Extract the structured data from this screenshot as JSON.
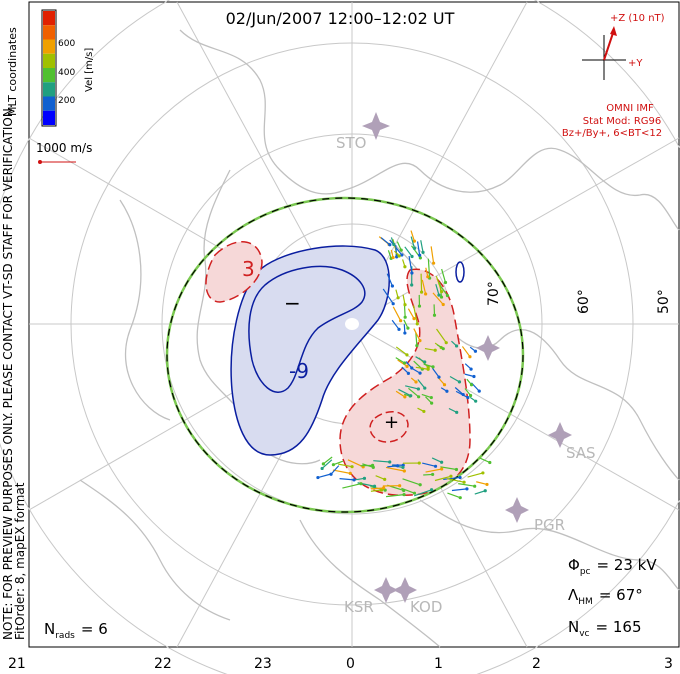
{
  "title": "02/Jun/2007 12:00–12:02 UT",
  "coord_label": "MLT coordinates",
  "velocity_scale": {
    "axis_label": "Vel [m/s]",
    "ticks": [
      "600",
      "400",
      "200"
    ],
    "colors": [
      "#0000ff",
      "#1060d0",
      "#20a080",
      "#50c030",
      "#a0c000",
      "#f0a000",
      "#f06000",
      "#e02000"
    ]
  },
  "ref_vector_label": "1000 m/s",
  "imf": {
    "z_label": "+Z (10 nT)",
    "y_label": "+Y",
    "source": "OMNI IMF",
    "model": "Stat Mod: RG96",
    "condition": "Bz+/By+, 6<BT<12"
  },
  "lat_labels": [
    "70°",
    "60°",
    "50°"
  ],
  "radars": [
    "STO",
    "SAS",
    "PGR",
    "KSR",
    "KOD"
  ],
  "contour_labels": [
    "3",
    "-9",
    "−",
    "+"
  ],
  "mlt_ticks": [
    "21",
    "22",
    "23",
    "0",
    "1",
    "2",
    "3"
  ],
  "stats": {
    "phi_symbol": "Φ",
    "phi_sub": "pc",
    "phi_value": "= 23 kV",
    "lambda_symbol": "Λ",
    "lambda_sub": "HM",
    "lambda_value": "= 67°",
    "n_symbol": "N",
    "n_sub": "vc",
    "n_value": "= 165",
    "rads_symbol": "N",
    "rads_sub": "rads",
    "rads_value": "= 6"
  },
  "notes": {
    "line1": "NOTE: FOR PREVIEW PURPOSES ONLY. PLEASE CONTACT VT-SD STAFF FOR VERIFICATION.",
    "line2": "FitOrder: 8, mapEX format"
  },
  "colors": {
    "grid": "#c8c8c8",
    "land": "#c0c0c0",
    "negative_fill": "#d8dcf0",
    "negative_line": "#0a1ea0",
    "positive_fill": "#f6d8d8",
    "positive_line": "#d02020",
    "imf": "#d01010",
    "radar": "#b0a0b8"
  }
}
